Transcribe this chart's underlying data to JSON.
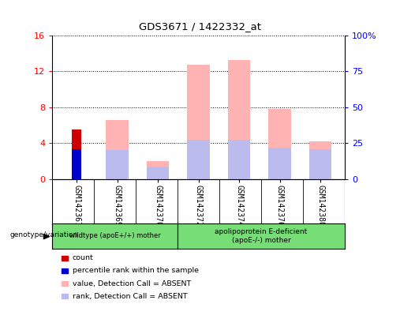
{
  "title": "GDS3671 / 1422332_at",
  "samples": [
    "GSM142367",
    "GSM142369",
    "GSM142370",
    "GSM142372",
    "GSM142374",
    "GSM142376",
    "GSM142380"
  ],
  "count_values": [
    5.5,
    0,
    0,
    0,
    0,
    0,
    0
  ],
  "percentile_values": [
    3.3,
    0,
    0,
    0,
    0,
    0,
    0
  ],
  "value_absent": [
    0,
    6.6,
    2.0,
    12.7,
    13.2,
    7.8,
    4.2
  ],
  "rank_absent": [
    0,
    3.2,
    1.4,
    4.4,
    4.4,
    3.5,
    3.3
  ],
  "ylim": [
    0,
    16
  ],
  "yticks_left": [
    0,
    4,
    8,
    12,
    16
  ],
  "yticks_right": [
    0,
    25,
    50,
    75,
    100
  ],
  "color_count": "#cc0000",
  "color_percentile": "#0000cc",
  "color_value_absent": "#ffb3b3",
  "color_rank_absent": "#bbbbee",
  "group1_label": "wildtype (apoE+/+) mother",
  "group2_label": "apolipoprotein E-deficient\n(apoE-/-) mother",
  "group1_count": 3,
  "group2_count": 4,
  "genotype_label": "genotype/variation",
  "legend_entries": [
    "count",
    "percentile rank within the sample",
    "value, Detection Call = ABSENT",
    "rank, Detection Call = ABSENT"
  ],
  "legend_colors": [
    "#cc0000",
    "#0000cc",
    "#ffb3b3",
    "#bbbbee"
  ],
  "bar_width": 0.55,
  "gray_bg": "#c8c8c8",
  "green_bg": "#77dd77"
}
